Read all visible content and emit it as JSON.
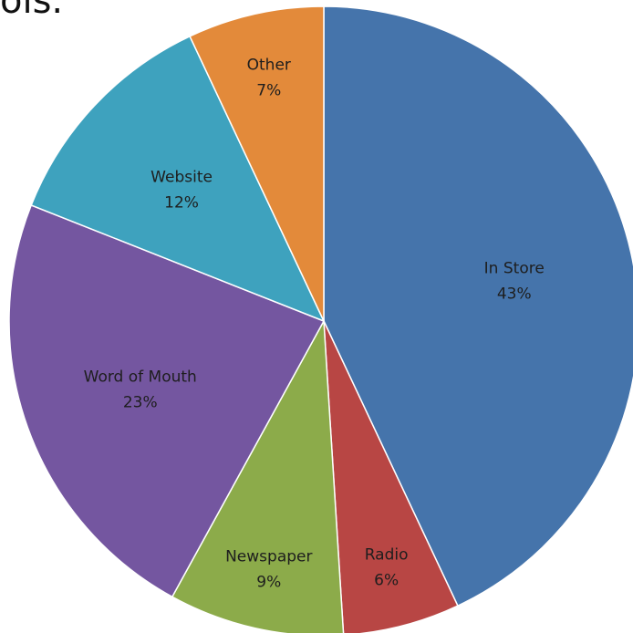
{
  "page": {
    "top_text": "ols."
  },
  "chart_data": {
    "type": "pie",
    "title": "",
    "slices": [
      {
        "label": "In Store",
        "value": 43,
        "value_label": "43%",
        "color": "#4574ab"
      },
      {
        "label": "Radio",
        "value": 6,
        "value_label": "6%",
        "color": "#b84644"
      },
      {
        "label": "Newspaper",
        "value": 9,
        "value_label": "9%",
        "color": "#8cab4a"
      },
      {
        "label": "Word of Mouth",
        "value": 23,
        "value_label": "23%",
        "color": "#7456a0"
      },
      {
        "label": "Website",
        "value": 12,
        "value_label": "12%",
        "color": "#3ea2be"
      },
      {
        "label": "Other",
        "value": 7,
        "value_label": "7%",
        "color": "#e38a3a"
      }
    ],
    "start_angle": "12 o'clock",
    "direction": "clockwise",
    "legend": "none"
  }
}
